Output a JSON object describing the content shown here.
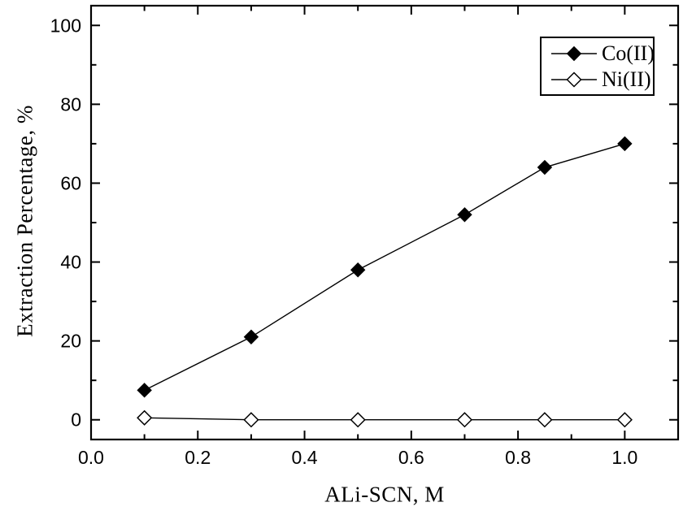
{
  "figure": {
    "background": "#ffffff",
    "foreground": "#000000"
  },
  "chart_data": {
    "type": "line",
    "title": "",
    "xlabel": "ALi-SCN, M",
    "ylabel": "Extraction Percentage, %",
    "xlim": [
      0,
      1.1
    ],
    "ylim": [
      -5,
      105
    ],
    "grid": false,
    "legend_position": "top-right",
    "x_major_ticks": [
      0.0,
      0.2,
      0.4,
      0.6,
      0.8,
      1.0
    ],
    "x_tick_labels": [
      "0.0",
      "0.2",
      "0.4",
      "0.6",
      "0.8",
      "1.0"
    ],
    "x_minor_ticks": [
      0.1,
      0.3,
      0.5,
      0.7,
      0.9
    ],
    "y_major_ticks": [
      0,
      20,
      40,
      60,
      80,
      100
    ],
    "y_tick_labels": [
      "0",
      "20",
      "40",
      "60",
      "80",
      "100"
    ],
    "y_minor_ticks": [
      10,
      30,
      50,
      70,
      90
    ],
    "series": [
      {
        "name": "Co(II)",
        "marker": "filled-diamond",
        "line_color": "#000000",
        "x": [
          0.1,
          0.3,
          0.5,
          0.7,
          0.85,
          1.0
        ],
        "y": [
          7.5,
          21,
          38,
          52,
          64,
          70
        ]
      },
      {
        "name": "Ni(II)",
        "marker": "open-diamond",
        "line_color": "#000000",
        "x": [
          0.1,
          0.3,
          0.5,
          0.7,
          0.85,
          1.0
        ],
        "y": [
          0.5,
          0,
          0,
          0,
          0,
          0
        ]
      }
    ]
  }
}
